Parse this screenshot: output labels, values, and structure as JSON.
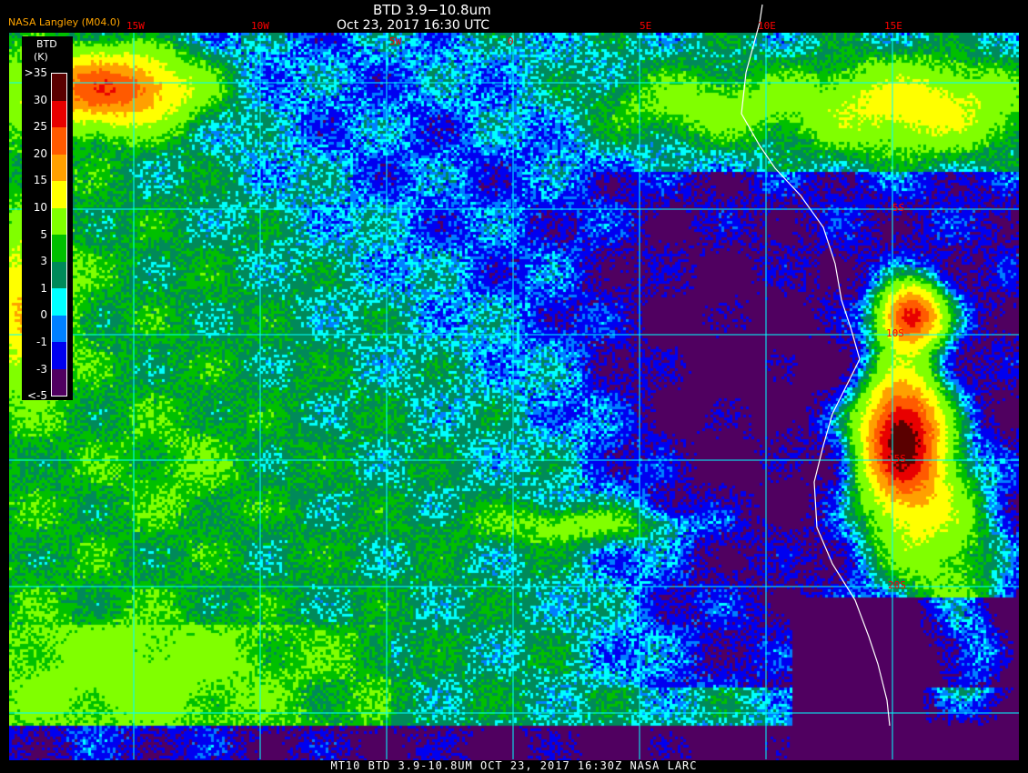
{
  "header": {
    "title": "BTD 3.9−10.8um",
    "subtitle": "Oct 23, 2017 16:30 UTC",
    "credit": "NASA Langley (M04.0)"
  },
  "longitude_labels": [
    "15W",
    "10W",
    "5W",
    "0",
    "5E",
    "10E",
    "15E"
  ],
  "latitude_labels": [
    "5S",
    "10S",
    "15S",
    "20S"
  ],
  "legend": {
    "title": "BTD",
    "unit": "(K)",
    "ticks": [
      ">35",
      "30",
      "25",
      "20",
      "15",
      "10",
      "5",
      "3",
      "1",
      "0",
      "-1",
      "-3",
      "<-5"
    ],
    "colors": [
      "#5a0000",
      "#e80000",
      "#ff5a00",
      "#ffa000",
      "#ffff00",
      "#80ff00",
      "#00c000",
      "#008a5a",
      "#00ffff",
      "#0080ff",
      "#0000f0",
      "#500060"
    ]
  },
  "colors": {
    "gridline": "#00ffff",
    "coastline": "#ffffff",
    "label": "#ff0000",
    "credit": "#ffa500"
  },
  "footer": {
    "text": "MT10  BTD 3.9-10.8UM   OCT 23, 2017 16:30Z   NASA LARC"
  }
}
